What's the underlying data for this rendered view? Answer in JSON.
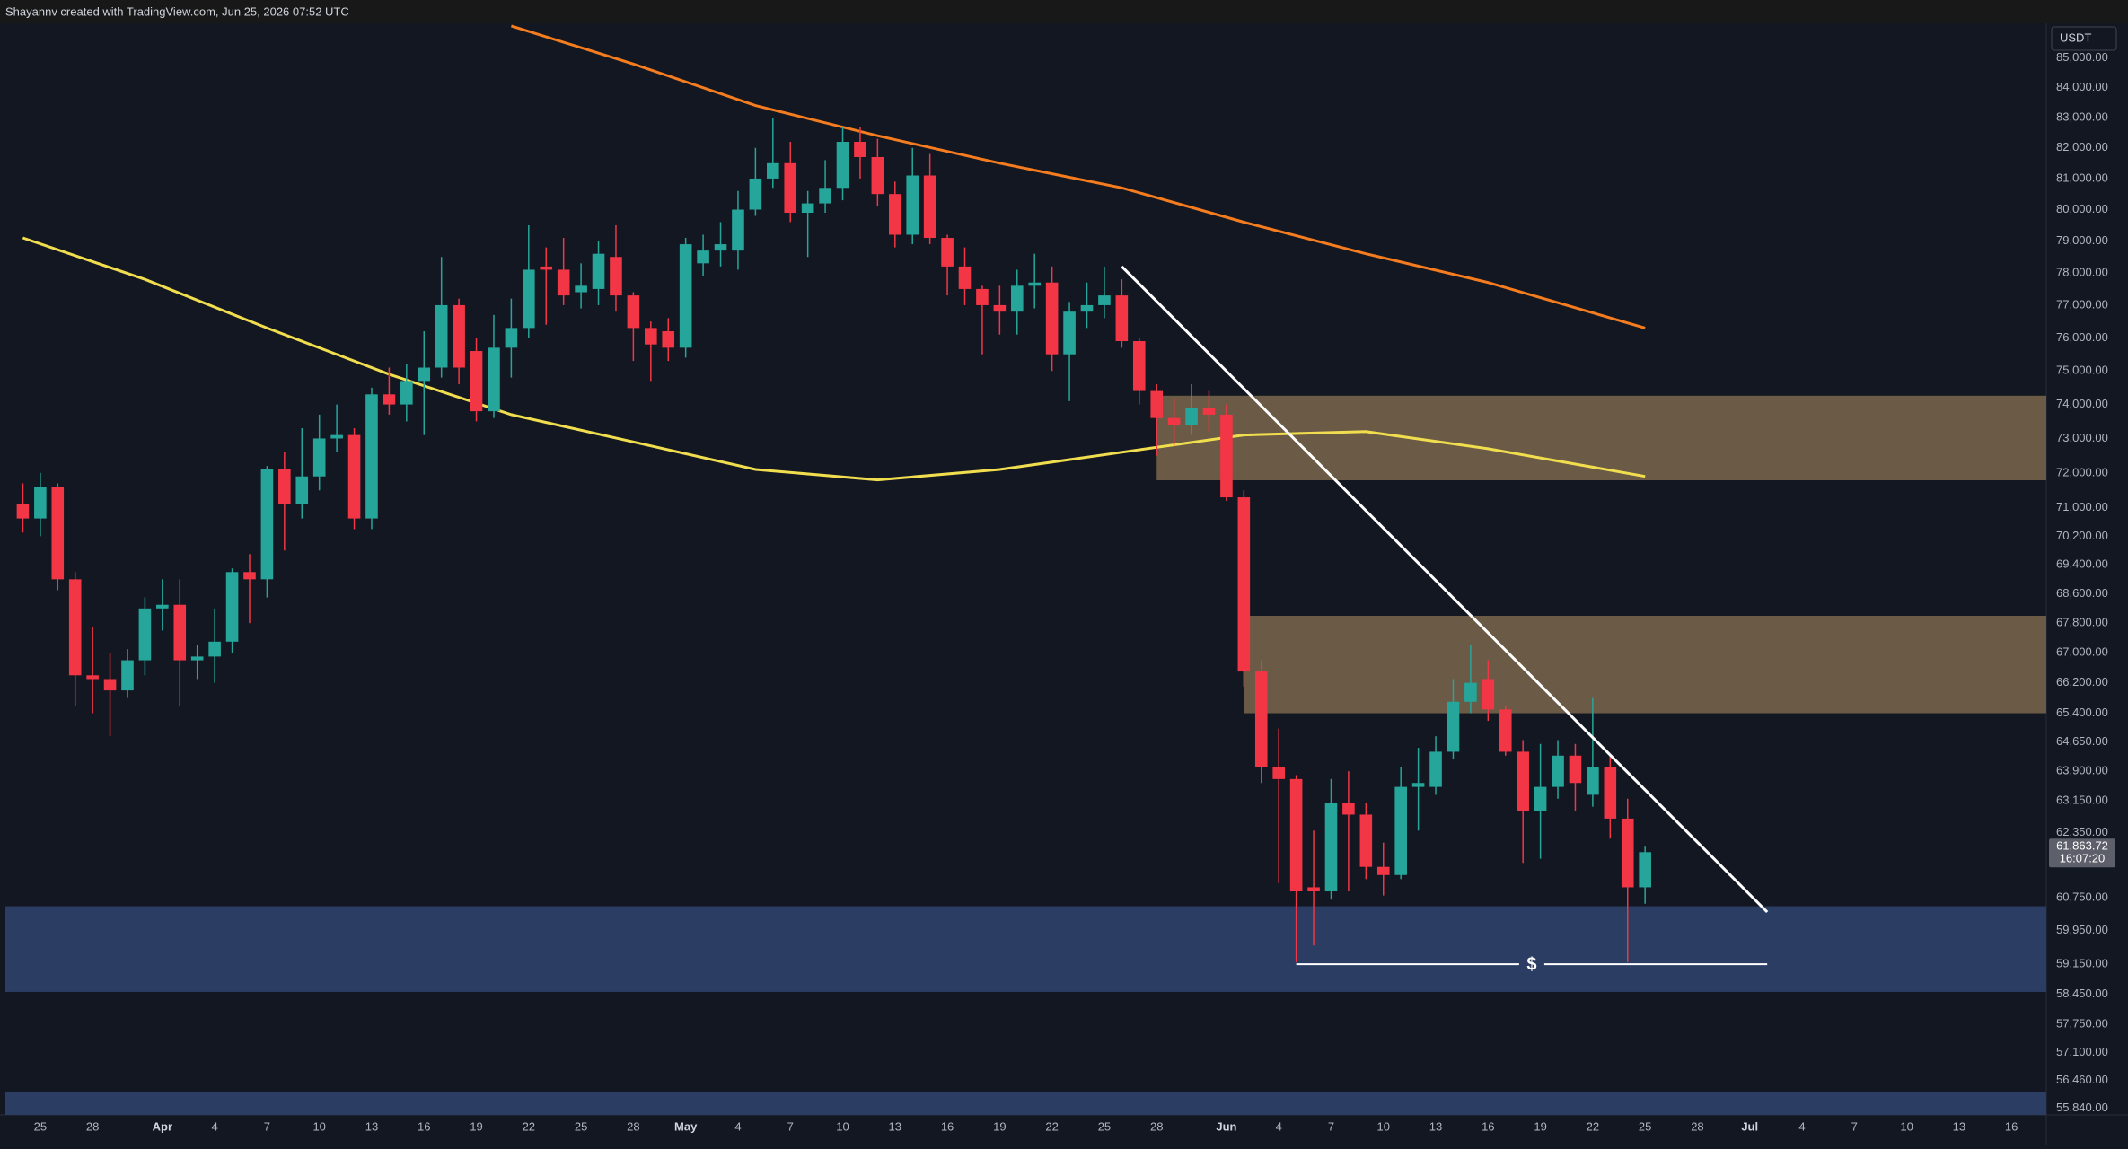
{
  "header": {
    "text": "Shayannv created with TradingView.com, Jun 25, 2026 07:52 UTC"
  },
  "chart_data": {
    "type": "candlestick",
    "currency": "USDT",
    "log_scale": true,
    "up_color": "#26a69a",
    "down_color": "#f23645",
    "x": [
      "03-24",
      "03-25",
      "03-26",
      "03-27",
      "03-28",
      "03-29",
      "03-30",
      "03-31",
      "04-01",
      "04-02",
      "04-03",
      "04-04",
      "04-05",
      "04-06",
      "04-07",
      "04-08",
      "04-09",
      "04-10",
      "04-11",
      "04-12",
      "04-13",
      "04-14",
      "04-15",
      "04-16",
      "04-17",
      "04-18",
      "04-19",
      "04-20",
      "04-21",
      "04-22",
      "04-23",
      "04-24",
      "04-25",
      "04-26",
      "04-27",
      "04-28",
      "04-29",
      "04-30",
      "05-01",
      "05-02",
      "05-03",
      "05-04",
      "05-05",
      "05-06",
      "05-07",
      "05-08",
      "05-09",
      "05-10",
      "05-11",
      "05-12",
      "05-13",
      "05-14",
      "05-15",
      "05-16",
      "05-17",
      "05-18",
      "05-19",
      "05-20",
      "05-21",
      "05-22",
      "05-23",
      "05-24",
      "05-25",
      "05-26",
      "05-27",
      "05-28",
      "05-29",
      "05-30",
      "05-31",
      "06-01",
      "06-02",
      "06-03",
      "06-04",
      "06-05",
      "06-06",
      "06-07",
      "06-08",
      "06-09",
      "06-10",
      "06-11",
      "06-12",
      "06-13",
      "06-14",
      "06-15",
      "06-16",
      "06-17",
      "06-18",
      "06-19",
      "06-20",
      "06-21",
      "06-22",
      "06-23",
      "06-24",
      "06-25"
    ],
    "open": [
      71100,
      70700,
      71600,
      69000,
      66400,
      66300,
      66000,
      66800,
      68200,
      68300,
      66800,
      66900,
      67300,
      69200,
      69000,
      72100,
      71100,
      71900,
      73000,
      73100,
      70700,
      74300,
      74000,
      74700,
      75100,
      77000,
      75600,
      73800,
      75700,
      76300,
      78200,
      78100,
      77400,
      77500,
      78500,
      77300,
      76300,
      76200,
      75700,
      78300,
      78700,
      78700,
      80000,
      81000,
      81500,
      79900,
      80200,
      80700,
      82200,
      81700,
      80500,
      79200,
      81100,
      79100,
      78200,
      77500,
      77000,
      76800,
      77600,
      77700,
      75500,
      76800,
      77000,
      77300,
      75900,
      74400,
      73600,
      73400,
      73900,
      73700,
      71300,
      66500,
      64000,
      63700,
      61000,
      60900,
      63100,
      62800,
      61500,
      61300,
      63500,
      63500,
      64400,
      65700,
      66300,
      65500,
      64400,
      62900,
      63500,
      64300,
      63300,
      64000,
      62700,
      61000
    ],
    "high": [
      71700,
      72000,
      71700,
      69200,
      67700,
      67000,
      67100,
      68500,
      69000,
      69000,
      67200,
      68200,
      69300,
      69700,
      72200,
      72600,
      73300,
      73700,
      74000,
      73300,
      74500,
      75100,
      75200,
      76200,
      78500,
      77200,
      76000,
      76700,
      77200,
      79500,
      78800,
      79100,
      78300,
      79000,
      79500,
      77400,
      76500,
      76600,
      79100,
      79200,
      79600,
      80600,
      82000,
      83000,
      82200,
      80600,
      81600,
      82700,
      82700,
      82300,
      80900,
      82000,
      81800,
      79200,
      78800,
      77600,
      77600,
      78100,
      78600,
      78200,
      77100,
      77700,
      78200,
      77800,
      76000,
      74600,
      74200,
      74600,
      74400,
      74000,
      71500,
      66800,
      65000,
      63800,
      62400,
      63700,
      63900,
      63100,
      62100,
      64000,
      64500,
      64800,
      66300,
      67200,
      66800,
      65600,
      64700,
      64600,
      64700,
      64600,
      65800,
      64300,
      63200,
      62000
    ],
    "low": [
      70300,
      70200,
      68700,
      65600,
      65400,
      64800,
      65800,
      66400,
      67600,
      65600,
      66300,
      66200,
      67000,
      67800,
      68500,
      69800,
      70700,
      71500,
      72600,
      70400,
      70400,
      73700,
      73500,
      73100,
      74800,
      74600,
      73500,
      73600,
      74800,
      76000,
      76400,
      77000,
      76900,
      77000,
      76800,
      75300,
      74700,
      75300,
      75400,
      77900,
      78200,
      78100,
      79800,
      80700,
      79600,
      78500,
      79900,
      80300,
      81000,
      80100,
      78800,
      78900,
      78900,
      77300,
      77000,
      75500,
      76100,
      76100,
      76900,
      75000,
      74100,
      76300,
      76600,
      75700,
      74000,
      72500,
      72800,
      73100,
      73200,
      71200,
      66100,
      63600,
      61100,
      59200,
      59600,
      60700,
      60900,
      61200,
      60800,
      61200,
      62400,
      63300,
      64200,
      65400,
      65200,
      64300,
      61600,
      61700,
      63200,
      62900,
      63000,
      62200,
      59200,
      60600
    ],
    "close": [
      70700,
      71600,
      69000,
      66400,
      66300,
      66000,
      66800,
      68200,
      68300,
      66800,
      66900,
      67300,
      69200,
      69000,
      72100,
      71100,
      71900,
      73000,
      73100,
      70700,
      74300,
      74000,
      74700,
      75100,
      77000,
      75100,
      73800,
      75700,
      76300,
      78100,
      78100,
      77300,
      77600,
      78600,
      77300,
      76300,
      75800,
      75700,
      78900,
      78700,
      78900,
      80000,
      81000,
      81500,
      79900,
      80200,
      80700,
      82200,
      81700,
      80500,
      79200,
      81100,
      79100,
      78200,
      77500,
      77000,
      76800,
      77600,
      77700,
      75500,
      76800,
      77000,
      77300,
      75900,
      74400,
      73600,
      73400,
      73900,
      73700,
      71300,
      66500,
      64000,
      63700,
      60900,
      60900,
      63100,
      62800,
      61500,
      61300,
      63500,
      63600,
      64400,
      65700,
      66200,
      65500,
      64400,
      62900,
      63500,
      64300,
      63600,
      64000,
      62700,
      61000,
      61863.72
    ],
    "xlim": [
      "03-23",
      "07-18"
    ],
    "xticks": [
      {
        "value": "03-25",
        "label": "25"
      },
      {
        "value": "03-28",
        "label": "28"
      },
      {
        "value": "04-01",
        "label": "Apr"
      },
      {
        "value": "04-04",
        "label": "4"
      },
      {
        "value": "04-07",
        "label": "7"
      },
      {
        "value": "04-10",
        "label": "10"
      },
      {
        "value": "04-13",
        "label": "13"
      },
      {
        "value": "04-16",
        "label": "16"
      },
      {
        "value": "04-19",
        "label": "19"
      },
      {
        "value": "04-22",
        "label": "22"
      },
      {
        "value": "04-25",
        "label": "25"
      },
      {
        "value": "04-28",
        "label": "28"
      },
      {
        "value": "05-01",
        "label": "May"
      },
      {
        "value": "05-04",
        "label": "4"
      },
      {
        "value": "05-07",
        "label": "7"
      },
      {
        "value": "05-10",
        "label": "10"
      },
      {
        "value": "05-13",
        "label": "13"
      },
      {
        "value": "05-16",
        "label": "16"
      },
      {
        "value": "05-19",
        "label": "19"
      },
      {
        "value": "05-22",
        "label": "22"
      },
      {
        "value": "05-25",
        "label": "25"
      },
      {
        "value": "05-28",
        "label": "28"
      },
      {
        "value": "06-01",
        "label": "Jun"
      },
      {
        "value": "06-04",
        "label": "4"
      },
      {
        "value": "06-07",
        "label": "7"
      },
      {
        "value": "06-10",
        "label": "10"
      },
      {
        "value": "06-13",
        "label": "13"
      },
      {
        "value": "06-16",
        "label": "16"
      },
      {
        "value": "06-19",
        "label": "19"
      },
      {
        "value": "06-22",
        "label": "22"
      },
      {
        "value": "06-25",
        "label": "25"
      },
      {
        "value": "06-28",
        "label": "28"
      },
      {
        "value": "07-01",
        "label": "Jul"
      },
      {
        "value": "07-04",
        "label": "4"
      },
      {
        "value": "07-07",
        "label": "7"
      },
      {
        "value": "07-10",
        "label": "10"
      },
      {
        "value": "07-13",
        "label": "13"
      },
      {
        "value": "07-16",
        "label": "16"
      }
    ],
    "ylim": [
      55690,
      86160
    ],
    "yticks": [
      {
        "value": 85000,
        "label": "85,000.00"
      },
      {
        "value": 84000,
        "label": "84,000.00"
      },
      {
        "value": 83000,
        "label": "83,000.00"
      },
      {
        "value": 82000,
        "label": "82,000.00"
      },
      {
        "value": 81000,
        "label": "81,000.00"
      },
      {
        "value": 80000,
        "label": "80,000.00"
      },
      {
        "value": 79000,
        "label": "79,000.00"
      },
      {
        "value": 78000,
        "label": "78,000.00"
      },
      {
        "value": 77000,
        "label": "77,000.00"
      },
      {
        "value": 76000,
        "label": "76,000.00"
      },
      {
        "value": 75000,
        "label": "75,000.00"
      },
      {
        "value": 74000,
        "label": "74,000.00"
      },
      {
        "value": 73000,
        "label": "73,000.00"
      },
      {
        "value": 72000,
        "label": "72,000.00"
      },
      {
        "value": 71000,
        "label": "71,000.00"
      },
      {
        "value": 70200,
        "label": "70,200.00"
      },
      {
        "value": 69400,
        "label": "69,400.00"
      },
      {
        "value": 68600,
        "label": "68,600.00"
      },
      {
        "value": 67800,
        "label": "67,800.00"
      },
      {
        "value": 67000,
        "label": "67,000.00"
      },
      {
        "value": 66200,
        "label": "66,200.00"
      },
      {
        "value": 65400,
        "label": "65,400.00"
      },
      {
        "value": 64650,
        "label": "64,650.00"
      },
      {
        "value": 63900,
        "label": "63,900.00"
      },
      {
        "value": 63150,
        "label": "63,150.00"
      },
      {
        "value": 62350,
        "label": "62,350.00"
      },
      {
        "value": 60750,
        "label": "60,750.00"
      },
      {
        "value": 59950,
        "label": "59,950.00"
      },
      {
        "value": 59150,
        "label": "59,150.00"
      },
      {
        "value": 58450,
        "label": "58,450.00"
      },
      {
        "value": 57750,
        "label": "57,750.00"
      },
      {
        "value": 57100,
        "label": "57,100.00"
      },
      {
        "value": 56460,
        "label": "56,460.00"
      },
      {
        "value": 55840,
        "label": "55,840.00"
      }
    ],
    "zones": [
      {
        "from": "05-28",
        "top": 74260,
        "bottom": 71790,
        "color": "#6b5a45"
      },
      {
        "from": "06-02",
        "top": 68000,
        "bottom": 65400,
        "color": "#6b5a45"
      },
      {
        "top": 60540,
        "bottom": 58500,
        "color": "#2b3d62"
      },
      {
        "top": 56200,
        "bottom": 55690,
        "color": "#2b3d62"
      }
    ],
    "moving_averages": [
      {
        "color": "#f1de4f",
        "x": [
          "03-24",
          "03-31",
          "04-07",
          "04-14",
          "04-21",
          "04-28",
          "05-05",
          "05-12",
          "05-19",
          "05-26",
          "06-02",
          "06-09",
          "06-16",
          "06-25"
        ],
        "values": [
          79100,
          77800,
          76300,
          74900,
          73700,
          72900,
          72100,
          71800,
          72100,
          72600,
          73100,
          73200,
          72700,
          71900
        ]
      },
      {
        "color": "#f57c1f",
        "x": [
          "04-21",
          "04-28",
          "05-05",
          "05-12",
          "05-19",
          "05-26",
          "06-02",
          "06-09",
          "06-16",
          "06-25"
        ],
        "values": [
          86100,
          84800,
          83400,
          82400,
          81500,
          80700,
          79600,
          78600,
          77700,
          76300
        ]
      }
    ],
    "trendline": {
      "color": "#ffffff",
      "x": [
        "05-26",
        "07-02"
      ],
      "values": [
        78200,
        60400
      ]
    },
    "liquidity": {
      "x": [
        "06-05",
        "07-02"
      ],
      "value": 59150,
      "label": "$"
    },
    "price_label": {
      "value": 61863.72,
      "label": "61,863.72",
      "timer": "16:07:20"
    }
  }
}
